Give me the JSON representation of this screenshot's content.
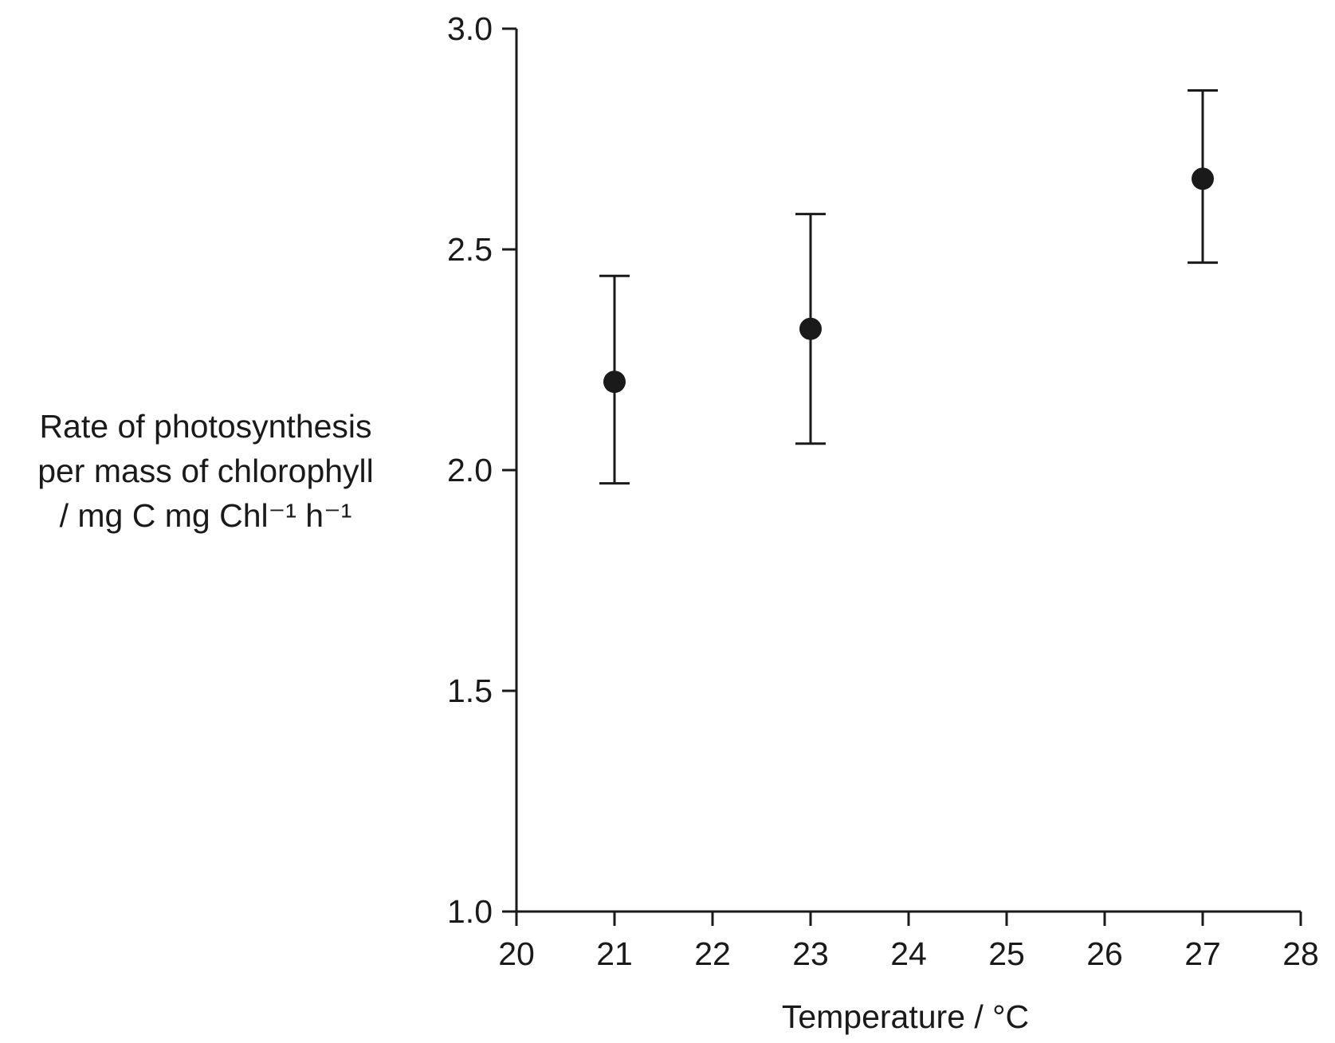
{
  "chart_data": {
    "type": "scatter",
    "title": "",
    "xlabel": "Temperature / °C",
    "ylabel": {
      "line1": "Rate of photosynthesis",
      "line2": "per mass of chlorophyll",
      "line3": "/ mg C mg Chl⁻¹ h⁻¹"
    },
    "xlim": [
      20,
      28
    ],
    "ylim": [
      1.0,
      3.0
    ],
    "x_ticks": [
      "20",
      "21",
      "22",
      "23",
      "24",
      "25",
      "26",
      "27",
      "28"
    ],
    "y_ticks": [
      "1.0",
      "1.5",
      "2.0",
      "2.5",
      "3.0"
    ],
    "grid": false,
    "series": [
      {
        "x": [
          21,
          23,
          27
        ],
        "y": [
          2.2,
          2.32,
          2.66
        ],
        "error_low": [
          1.97,
          2.06,
          2.47
        ],
        "error_high": [
          2.44,
          2.58,
          2.86
        ]
      }
    ]
  }
}
